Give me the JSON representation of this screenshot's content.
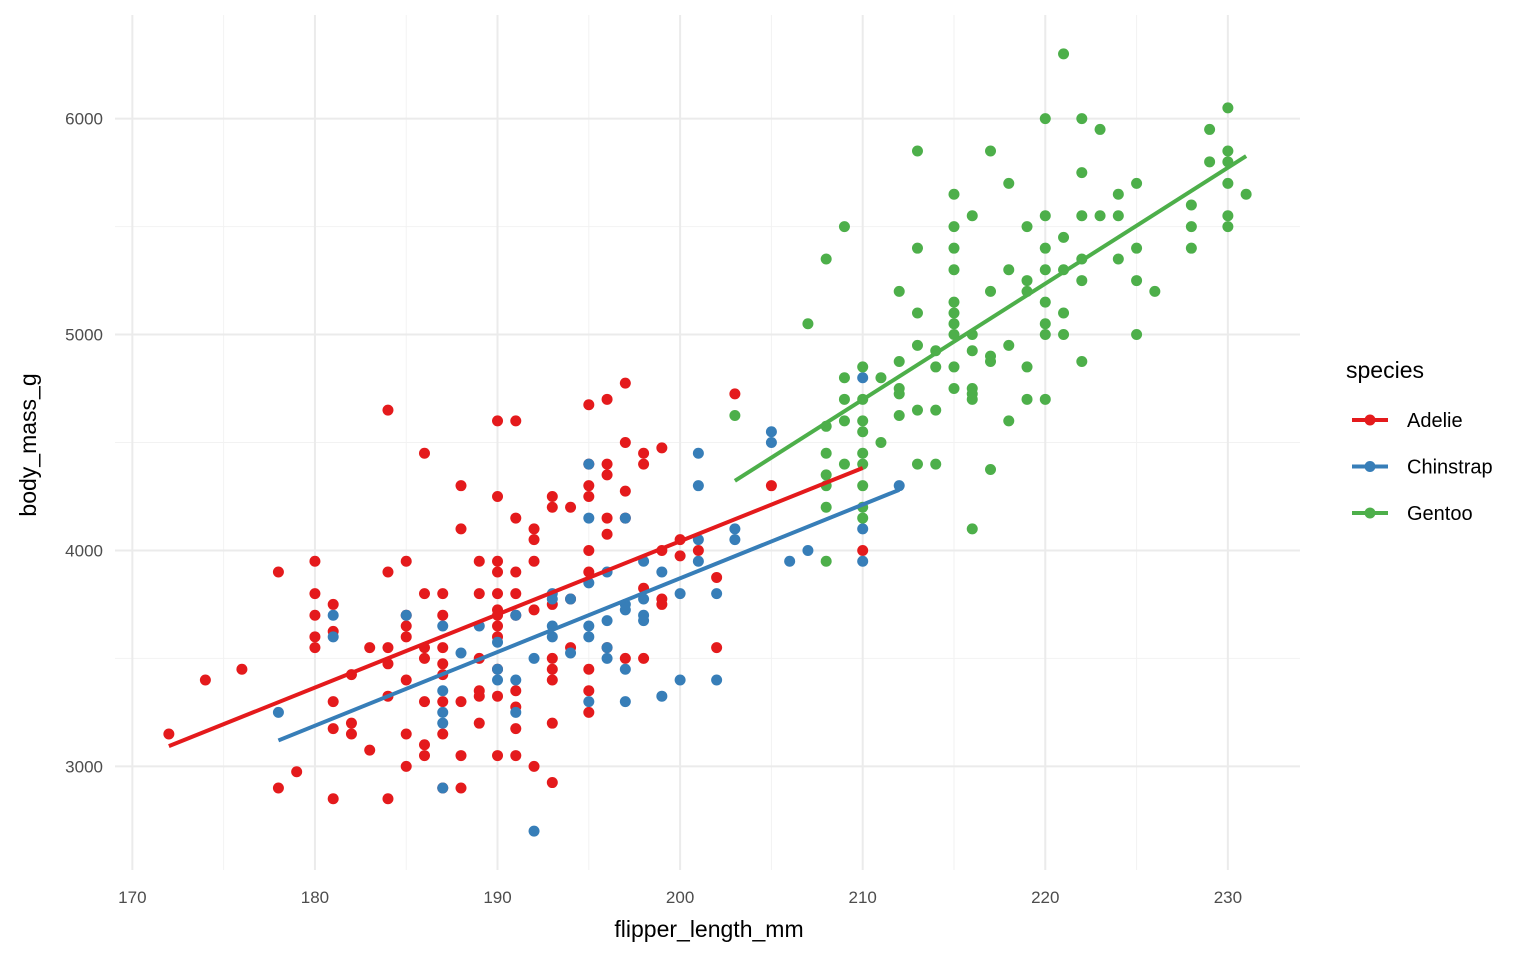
{
  "chart_data": {
    "type": "scatter",
    "title": "",
    "xlabel": "flipper_length_mm",
    "ylabel": "body_mass_g",
    "xlim": [
      169.05,
      233.95
    ],
    "ylim": [
      2520,
      6480
    ],
    "xticks": [
      170,
      180,
      190,
      200,
      210,
      220,
      230
    ],
    "yticks": [
      3000,
      4000,
      5000,
      6000
    ],
    "grid": true,
    "legend": {
      "title": "species",
      "placement": "right"
    },
    "smooth": "linear regression per species",
    "series": [
      {
        "name": "Adelie",
        "color": "#E41A1C",
        "points": [
          [
            172,
            3150
          ],
          [
            174,
            3400
          ],
          [
            176,
            3450
          ],
          [
            178,
            3900
          ],
          [
            178,
            2900
          ],
          [
            179,
            2975
          ],
          [
            180,
            3950
          ],
          [
            180,
            3800
          ],
          [
            180,
            3700
          ],
          [
            180,
            3600
          ],
          [
            180,
            3550
          ],
          [
            181,
            3750
          ],
          [
            181,
            3625
          ],
          [
            181,
            3300
          ],
          [
            181,
            3175
          ],
          [
            181,
            2850
          ],
          [
            182,
            3425
          ],
          [
            182,
            3200
          ],
          [
            182,
            3150
          ],
          [
            183,
            3550
          ],
          [
            183,
            3075
          ],
          [
            184,
            4650
          ],
          [
            184,
            3900
          ],
          [
            184,
            3550
          ],
          [
            184,
            3475
          ],
          [
            184,
            3325
          ],
          [
            184,
            2850
          ],
          [
            185,
            3950
          ],
          [
            185,
            3700
          ],
          [
            185,
            3650
          ],
          [
            185,
            3600
          ],
          [
            185,
            3400
          ],
          [
            185,
            3150
          ],
          [
            185,
            3000
          ],
          [
            186,
            4450
          ],
          [
            186,
            3800
          ],
          [
            186,
            3550
          ],
          [
            186,
            3500
          ],
          [
            186,
            3300
          ],
          [
            186,
            3100
          ],
          [
            186,
            3050
          ],
          [
            187,
            3800
          ],
          [
            187,
            3700
          ],
          [
            187,
            3550
          ],
          [
            187,
            3475
          ],
          [
            187,
            3425
          ],
          [
            187,
            3300
          ],
          [
            187,
            3150
          ],
          [
            187,
            2900
          ],
          [
            188,
            4300
          ],
          [
            188,
            4100
          ],
          [
            188,
            3300
          ],
          [
            188,
            3050
          ],
          [
            188,
            2900
          ],
          [
            189,
            3950
          ],
          [
            189,
            3800
          ],
          [
            189,
            3500
          ],
          [
            189,
            3350
          ],
          [
            189,
            3325
          ],
          [
            189,
            3200
          ],
          [
            190,
            4600
          ],
          [
            190,
            4250
          ],
          [
            190,
            3950
          ],
          [
            190,
            3900
          ],
          [
            190,
            3800
          ],
          [
            190,
            3725
          ],
          [
            190,
            3700
          ],
          [
            190,
            3650
          ],
          [
            190,
            3600
          ],
          [
            190,
            3450
          ],
          [
            190,
            3325
          ],
          [
            190,
            3050
          ],
          [
            191,
            4600
          ],
          [
            191,
            4150
          ],
          [
            191,
            3900
          ],
          [
            191,
            3800
          ],
          [
            191,
            3700
          ],
          [
            191,
            3350
          ],
          [
            191,
            3275
          ],
          [
            191,
            3175
          ],
          [
            191,
            3050
          ],
          [
            192,
            4100
          ],
          [
            192,
            4050
          ],
          [
            192,
            3950
          ],
          [
            192,
            3725
          ],
          [
            192,
            3000
          ],
          [
            193,
            4250
          ],
          [
            193,
            4200
          ],
          [
            193,
            3750
          ],
          [
            193,
            3500
          ],
          [
            193,
            3450
          ],
          [
            193,
            3400
          ],
          [
            193,
            3200
          ],
          [
            193,
            2925
          ],
          [
            194,
            4200
          ],
          [
            194,
            3775
          ],
          [
            194,
            3550
          ],
          [
            195,
            4675
          ],
          [
            195,
            4400
          ],
          [
            195,
            4300
          ],
          [
            195,
            4250
          ],
          [
            195,
            4000
          ],
          [
            195,
            3900
          ],
          [
            195,
            3450
          ],
          [
            195,
            3350
          ],
          [
            195,
            3250
          ],
          [
            196,
            4700
          ],
          [
            196,
            4400
          ],
          [
            196,
            4350
          ],
          [
            196,
            4150
          ],
          [
            196,
            4075
          ],
          [
            196,
            3550
          ],
          [
            197,
            4775
          ],
          [
            197,
            4500
          ],
          [
            197,
            4275
          ],
          [
            197,
            4150
          ],
          [
            197,
            3500
          ],
          [
            198,
            4450
          ],
          [
            198,
            4400
          ],
          [
            198,
            3825
          ],
          [
            198,
            3500
          ],
          [
            199,
            4475
          ],
          [
            199,
            4000
          ],
          [
            199,
            3775
          ],
          [
            199,
            3750
          ],
          [
            200,
            4050
          ],
          [
            200,
            3975
          ],
          [
            201,
            4000
          ],
          [
            202,
            3875
          ],
          [
            202,
            3550
          ],
          [
            203,
            4725
          ],
          [
            205,
            4300
          ],
          [
            210,
            4000
          ]
        ]
      },
      {
        "name": "Chinstrap",
        "color": "#377EB8",
        "points": [
          [
            178,
            3250
          ],
          [
            181,
            3700
          ],
          [
            181,
            3600
          ],
          [
            185,
            3700
          ],
          [
            187,
            3650
          ],
          [
            187,
            3350
          ],
          [
            187,
            3250
          ],
          [
            187,
            3200
          ],
          [
            187,
            2900
          ],
          [
            188,
            3525
          ],
          [
            189,
            3650
          ],
          [
            190,
            3575
          ],
          [
            190,
            3450
          ],
          [
            190,
            3400
          ],
          [
            191,
            3700
          ],
          [
            191,
            3400
          ],
          [
            191,
            3250
          ],
          [
            192,
            3500
          ],
          [
            192,
            2700
          ],
          [
            193,
            3800
          ],
          [
            193,
            3775
          ],
          [
            193,
            3650
          ],
          [
            193,
            3600
          ],
          [
            194,
            3775
          ],
          [
            194,
            3525
          ],
          [
            195,
            4400
          ],
          [
            195,
            4150
          ],
          [
            195,
            3850
          ],
          [
            195,
            3650
          ],
          [
            195,
            3600
          ],
          [
            195,
            3300
          ],
          [
            196,
            3900
          ],
          [
            196,
            3675
          ],
          [
            196,
            3550
          ],
          [
            196,
            3500
          ],
          [
            197,
            4150
          ],
          [
            197,
            3750
          ],
          [
            197,
            3725
          ],
          [
            197,
            3450
          ],
          [
            197,
            3300
          ],
          [
            198,
            3950
          ],
          [
            198,
            3775
          ],
          [
            198,
            3700
          ],
          [
            198,
            3675
          ],
          [
            199,
            3900
          ],
          [
            199,
            3325
          ],
          [
            200,
            3800
          ],
          [
            200,
            3400
          ],
          [
            201,
            4450
          ],
          [
            201,
            4300
          ],
          [
            201,
            4050
          ],
          [
            201,
            3950
          ],
          [
            202,
            3800
          ],
          [
            202,
            3400
          ],
          [
            203,
            4100
          ],
          [
            203,
            4050
          ],
          [
            205,
            4550
          ],
          [
            205,
            4500
          ],
          [
            206,
            3950
          ],
          [
            207,
            4000
          ],
          [
            210,
            4800
          ],
          [
            210,
            4100
          ],
          [
            210,
            3950
          ],
          [
            212,
            4300
          ]
        ]
      },
      {
        "name": "Gentoo",
        "color": "#4DAF4A",
        "points": [
          [
            203,
            4625
          ],
          [
            207,
            5050
          ],
          [
            208,
            5350
          ],
          [
            208,
            4575
          ],
          [
            208,
            4450
          ],
          [
            208,
            4350
          ],
          [
            208,
            4300
          ],
          [
            208,
            4200
          ],
          [
            208,
            3950
          ],
          [
            209,
            5500
          ],
          [
            209,
            4800
          ],
          [
            209,
            4700
          ],
          [
            209,
            4600
          ],
          [
            209,
            4400
          ],
          [
            210,
            4850
          ],
          [
            210,
            4700
          ],
          [
            210,
            4600
          ],
          [
            210,
            4550
          ],
          [
            210,
            4450
          ],
          [
            210,
            4400
          ],
          [
            210,
            4300
          ],
          [
            210,
            4200
          ],
          [
            210,
            4150
          ],
          [
            211,
            4800
          ],
          [
            211,
            4500
          ],
          [
            212,
            5200
          ],
          [
            212,
            4875
          ],
          [
            212,
            4750
          ],
          [
            212,
            4725
          ],
          [
            212,
            4625
          ],
          [
            213,
            5850
          ],
          [
            213,
            5400
          ],
          [
            213,
            5100
          ],
          [
            213,
            4950
          ],
          [
            213,
            4650
          ],
          [
            213,
            4400
          ],
          [
            214,
            4925
          ],
          [
            214,
            4850
          ],
          [
            214,
            4650
          ],
          [
            214,
            4400
          ],
          [
            215,
            5650
          ],
          [
            215,
            5500
          ],
          [
            215,
            5400
          ],
          [
            215,
            5300
          ],
          [
            215,
            5150
          ],
          [
            215,
            5100
          ],
          [
            215,
            5050
          ],
          [
            215,
            5000
          ],
          [
            215,
            4850
          ],
          [
            215,
            4750
          ],
          [
            216,
            5550
          ],
          [
            216,
            5000
          ],
          [
            216,
            4925
          ],
          [
            216,
            4750
          ],
          [
            216,
            4725
          ],
          [
            216,
            4700
          ],
          [
            216,
            4100
          ],
          [
            217,
            5850
          ],
          [
            217,
            5200
          ],
          [
            217,
            4900
          ],
          [
            217,
            4875
          ],
          [
            217,
            4375
          ],
          [
            218,
            5700
          ],
          [
            218,
            5300
          ],
          [
            218,
            4950
          ],
          [
            218,
            4600
          ],
          [
            219,
            5500
          ],
          [
            219,
            5250
          ],
          [
            219,
            5200
          ],
          [
            219,
            4850
          ],
          [
            219,
            4700
          ],
          [
            220,
            6000
          ],
          [
            220,
            5550
          ],
          [
            220,
            5400
          ],
          [
            220,
            5300
          ],
          [
            220,
            5150
          ],
          [
            220,
            5050
          ],
          [
            220,
            5000
          ],
          [
            220,
            4700
          ],
          [
            221,
            6300
          ],
          [
            221,
            5450
          ],
          [
            221,
            5300
          ],
          [
            221,
            5100
          ],
          [
            221,
            5000
          ],
          [
            222,
            6000
          ],
          [
            222,
            5750
          ],
          [
            222,
            5550
          ],
          [
            222,
            5350
          ],
          [
            222,
            5250
          ],
          [
            222,
            4875
          ],
          [
            223,
            5950
          ],
          [
            223,
            5550
          ],
          [
            224,
            5650
          ],
          [
            224,
            5550
          ],
          [
            224,
            5350
          ],
          [
            225,
            5700
          ],
          [
            225,
            5400
          ],
          [
            225,
            5250
          ],
          [
            225,
            5000
          ],
          [
            226,
            5200
          ],
          [
            228,
            5600
          ],
          [
            228,
            5500
          ],
          [
            228,
            5400
          ],
          [
            229,
            5950
          ],
          [
            229,
            5800
          ],
          [
            230,
            6050
          ],
          [
            230,
            5850
          ],
          [
            230,
            5800
          ],
          [
            230,
            5700
          ],
          [
            230,
            5550
          ],
          [
            230,
            5500
          ],
          [
            231,
            5650
          ]
        ]
      }
    ]
  }
}
